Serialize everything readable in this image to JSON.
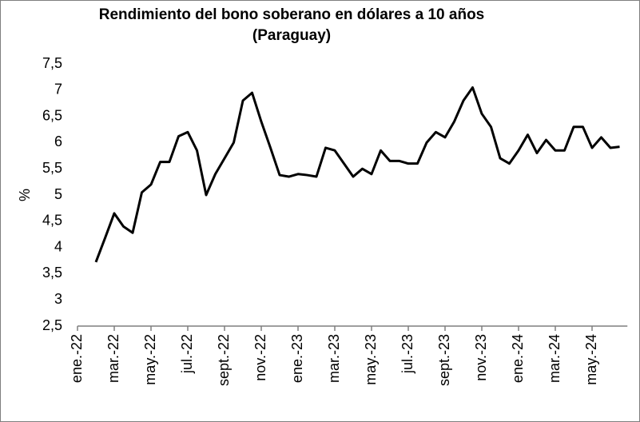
{
  "chart_data": {
    "type": "line",
    "title": [
      "Rendimiento del bono soberano en dólares a 10 años",
      "(Paraguay)"
    ],
    "y_label": "%",
    "categories": [
      "ene.-22",
      null,
      null,
      null,
      "mar.-22",
      null,
      null,
      null,
      "may.-22",
      null,
      null,
      null,
      "jul.-22",
      null,
      null,
      null,
      "sept.-22",
      null,
      null,
      null,
      "nov.-22",
      null,
      null,
      null,
      "ene.-23",
      null,
      null,
      null,
      "mar.-23",
      null,
      null,
      null,
      "may.-23",
      null,
      null,
      null,
      "jul.-23",
      null,
      null,
      null,
      "sept.-23",
      null,
      null,
      null,
      "nov.-23",
      null,
      null,
      null,
      "ene.-24",
      null,
      null,
      null,
      "mar.-24",
      null,
      null,
      null,
      "may.-24",
      null,
      null,
      null
    ],
    "series": [
      {
        "name": "Rendimiento",
        "color": "#000000",
        "values": [
          null,
          null,
          3.72,
          4.18,
          4.65,
          4.4,
          4.28,
          5.05,
          5.2,
          5.63,
          5.63,
          6.12,
          6.2,
          5.85,
          5.0,
          5.4,
          5.7,
          6.0,
          6.8,
          6.95,
          6.4,
          5.9,
          5.38,
          5.35,
          5.4,
          5.38,
          5.35,
          5.9,
          5.85,
          5.6,
          5.35,
          5.5,
          5.4,
          5.85,
          5.65,
          5.65,
          5.6,
          5.6,
          6.0,
          6.2,
          6.1,
          6.4,
          6.8,
          7.05,
          6.55,
          6.3,
          5.7,
          5.6,
          5.85,
          6.15,
          5.8,
          6.05,
          5.85,
          5.85,
          6.3,
          6.3,
          5.9,
          6.1,
          5.9,
          5.92
        ]
      }
    ],
    "ylim": [
      2.5,
      7.5
    ],
    "yticks": [
      {
        "value": 2.5,
        "label": "2,5"
      },
      3,
      {
        "value": 3.5,
        "label": "3,5"
      },
      4,
      {
        "value": 4.5,
        "label": "4,5"
      },
      5,
      {
        "value": 5.5,
        "label": "5,5"
      },
      6,
      {
        "value": 6.5,
        "label": "6,5"
      },
      7,
      {
        "value": 7.5,
        "label": "7,5"
      }
    ],
    "grid": false
  }
}
